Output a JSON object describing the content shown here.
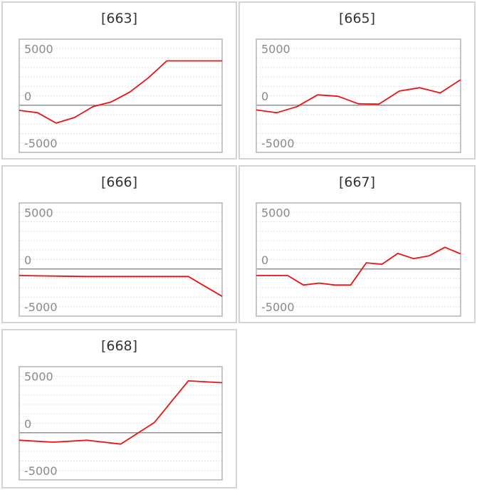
{
  "chart_data": [
    {
      "type": "line",
      "title": "[663]",
      "ylim": [
        -5000,
        7000
      ],
      "yticks": [
        5000,
        0,
        -5000
      ],
      "grid": true,
      "colors": {
        "series": "#ee1111",
        "zero_line": "#909090",
        "grid": "#e2e2e2",
        "frame": "#b3b3b3"
      },
      "series": [
        {
          "x": [
            0,
            1,
            2,
            3,
            4,
            5,
            6,
            7,
            8,
            9,
            10,
            11
          ],
          "y": [
            -550,
            -800,
            -1900,
            -1300,
            -150,
            350,
            1400,
            2900,
            4700,
            4700,
            4700,
            4700
          ]
        }
      ]
    },
    {
      "type": "line",
      "title": "[665]",
      "ylim": [
        -5000,
        7000
      ],
      "yticks": [
        5000,
        0,
        -5000
      ],
      "grid": true,
      "colors": {
        "series": "#ee1111",
        "zero_line": "#909090",
        "grid": "#e2e2e2",
        "frame": "#b3b3b3"
      },
      "series": [
        {
          "x": [
            0,
            1,
            2,
            3,
            4,
            5,
            6,
            7,
            8,
            9,
            10
          ],
          "y": [
            -500,
            -800,
            -150,
            1100,
            950,
            150,
            120,
            1500,
            1850,
            1300,
            2700
          ]
        }
      ]
    },
    {
      "type": "line",
      "title": "[666]",
      "ylim": [
        -5000,
        7000
      ],
      "yticks": [
        5000,
        0,
        -5000
      ],
      "grid": true,
      "colors": {
        "series": "#ee1111",
        "zero_line": "#909090",
        "grid": "#e2e2e2",
        "frame": "#b3b3b3"
      },
      "series": [
        {
          "x": [
            0,
            1,
            2,
            3,
            4,
            5,
            6
          ],
          "y": [
            -700,
            -750,
            -800,
            -800,
            -800,
            -800,
            -2900
          ]
        }
      ]
    },
    {
      "type": "line",
      "title": "[667]",
      "ylim": [
        -5000,
        7000
      ],
      "yticks": [
        5000,
        0,
        -5000
      ],
      "grid": true,
      "colors": {
        "series": "#ee1111",
        "zero_line": "#909090",
        "grid": "#e2e2e2",
        "frame": "#b3b3b3"
      },
      "series": [
        {
          "x": [
            0,
            1,
            2,
            3,
            4,
            5,
            6,
            7,
            8,
            9,
            10,
            11,
            12,
            13
          ],
          "y": [
            -700,
            -700,
            -700,
            -1700,
            -1500,
            -1700,
            -1700,
            650,
            500,
            1650,
            1100,
            1400,
            2300,
            1600
          ]
        }
      ]
    },
    {
      "type": "line",
      "title": "[668]",
      "ylim": [
        -5000,
        7000
      ],
      "yticks": [
        5000,
        0,
        -5000
      ],
      "grid": true,
      "colors": {
        "series": "#ee1111",
        "zero_line": "#909090",
        "grid": "#e2e2e2",
        "frame": "#b3b3b3"
      },
      "series": [
        {
          "x": [
            0,
            1,
            2,
            3,
            4,
            5,
            6
          ],
          "y": [
            -800,
            -1000,
            -800,
            -1200,
            1100,
            5500,
            5300
          ]
        }
      ]
    }
  ]
}
